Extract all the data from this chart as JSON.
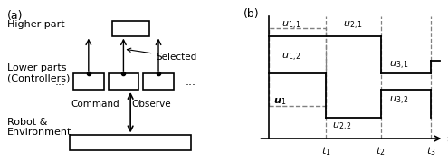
{
  "fig_width": 4.95,
  "fig_height": 1.8,
  "dpi": 100,
  "bg_color": "#ffffff",
  "panel_a": {
    "label": "(a)",
    "higher_part_text": "Higher part",
    "lower_parts_text": "Lower parts\n(Controllers)",
    "robot_env_text": "Robot &\nEnvironment",
    "selected_text": "Selected",
    "command_text": "Command",
    "observe_text": "Observe",
    "dots": "..."
  },
  "panel_b": {
    "label": "(b)",
    "t_label": "t",
    "t1_label": "t_1",
    "t2_label": "t_2",
    "t3_label": "t_3",
    "u1_label": "u_1",
    "u11_label": "u_{1,1}",
    "u12_label": "u_{1,2}",
    "u21_label": "u_{2,1}",
    "u22_label": "u_{2,2}",
    "u31_label": "u_{3,1}",
    "u32_label": "u_{3,2}"
  }
}
